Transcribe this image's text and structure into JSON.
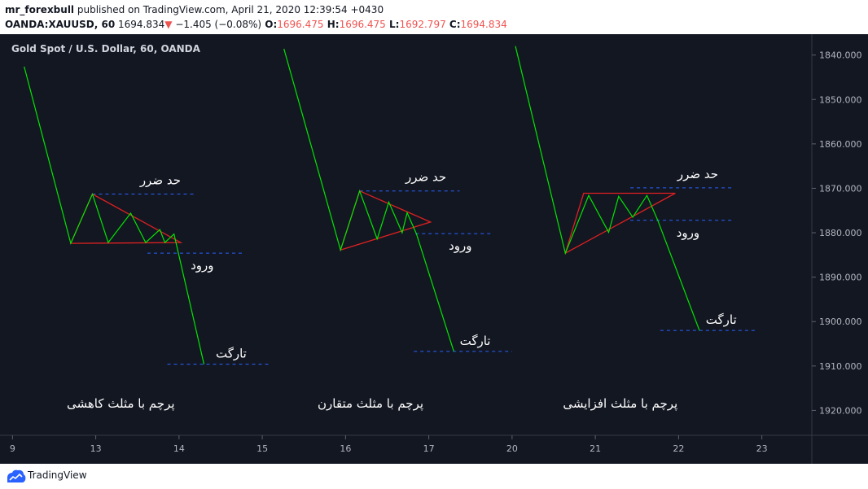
{
  "header": {
    "user": "mr_forexbull",
    "published_text": " published on TradingView.com, April 21, 2020 12:39:54 +0430",
    "symbol": "OANDA:XAUUSD, 60",
    "last": " 1694.834",
    "change_arrow": "▼",
    "change": " −1.405 (−0.08%)",
    "o_label": " O:",
    "o_value": "1696.475",
    "h_label": " H:",
    "h_value": "1696.475",
    "l_label": " L:",
    "l_value": "1692.797",
    "c_label": " C:",
    "c_value": "1694.834"
  },
  "chart_data": {
    "type": "line",
    "title": "Gold Spot / U.S. Dollar, 60, OANDA",
    "y_axis": {
      "ticks": [
        "1840.000",
        "1850.000",
        "1860.000",
        "1870.000",
        "1880.000",
        "1890.000",
        "1900.000",
        "1910.000",
        "1920.000"
      ],
      "tick_values": [
        1840,
        1850,
        1860,
        1870,
        1880,
        1890,
        1900,
        1910,
        1920
      ],
      "range": [
        1835.3,
        1925.6
      ],
      "inverted": true
    },
    "x_axis": {
      "ticks": [
        "9",
        "13",
        "14",
        "15",
        "16",
        "17",
        "20",
        "21",
        "22",
        "23"
      ],
      "tick_positions": [
        0,
        1,
        2,
        3,
        4,
        5,
        6,
        7,
        8,
        9
      ],
      "range": [
        -0.15,
        9.6
      ]
    },
    "line_color": "#00e600",
    "pattern_color": "#e02020",
    "level_color": "#2962ff",
    "patterns": [
      {
        "name": "پرچم با مثلث کاهشی",
        "stop_label": "حد ضرر",
        "entry_label": "ورود",
        "target_label": "تارگت",
        "path": [
          [
            0.14,
            1842.6
          ],
          [
            0.7,
            1882.4
          ],
          [
            0.96,
            1871.3
          ],
          [
            1.15,
            1882.2
          ],
          [
            1.42,
            1875.6
          ],
          [
            1.6,
            1882.2
          ],
          [
            1.77,
            1879.3
          ],
          [
            1.83,
            1882.2
          ],
          [
            1.94,
            1880.3
          ],
          [
            2.3,
            1909.6
          ]
        ],
        "triangle": [
          [
            0.7,
            1882.4
          ],
          [
            0.96,
            1871.3
          ],
          [
            2.02,
            1882.2
          ]
        ],
        "stop_level": {
          "y": 1871.3,
          "x": [
            0.96,
            2.2
          ]
        },
        "entry_level": {
          "y": 1884.6,
          "x": [
            1.62,
            2.78
          ]
        },
        "target_level": {
          "y": 1909.6,
          "x": [
            1.86,
            3.1
          ]
        }
      },
      {
        "name": "پرچم با مثلث متقارن",
        "stop_label": "حد ضرر",
        "entry_label": "ورود",
        "target_label": "تارگت",
        "path": [
          [
            3.26,
            1838.6
          ],
          [
            3.94,
            1883.9
          ],
          [
            4.17,
            1870.6
          ],
          [
            4.38,
            1881.4
          ],
          [
            4.52,
            1873.1
          ],
          [
            4.68,
            1880.0
          ],
          [
            4.74,
            1875.5
          ],
          [
            4.85,
            1880.2
          ],
          [
            5.3,
            1906.7
          ]
        ],
        "triangle": [
          [
            3.94,
            1883.9
          ],
          [
            4.17,
            1870.6
          ],
          [
            5.02,
            1877.6
          ]
        ],
        "stop_level": {
          "y": 1870.6,
          "x": [
            4.17,
            5.37
          ]
        },
        "entry_level": {
          "y": 1880.2,
          "x": [
            4.84,
            5.76
          ]
        },
        "target_level": {
          "y": 1906.7,
          "x": [
            4.82,
            6.0
          ]
        }
      },
      {
        "name": "پرچم با مثلث افزایشی",
        "stop_label": "حد ضرر",
        "entry_label": "ورود",
        "target_label": "تارگت",
        "path": [
          [
            6.04,
            1838.0
          ],
          [
            6.64,
            1884.6
          ],
          [
            6.92,
            1871.6
          ],
          [
            7.16,
            1879.9
          ],
          [
            7.28,
            1871.8
          ],
          [
            7.45,
            1876.5
          ],
          [
            7.62,
            1871.6
          ],
          [
            7.75,
            1877.2
          ],
          [
            8.25,
            1902.0
          ]
        ],
        "triangle": [
          [
            6.64,
            1884.6
          ],
          [
            6.86,
            1871.1
          ],
          [
            7.96,
            1871.1
          ]
        ],
        "stop_level": {
          "y": 1869.9,
          "x": [
            7.42,
            8.65
          ]
        },
        "entry_level": {
          "y": 1877.2,
          "x": [
            7.42,
            8.65
          ]
        },
        "target_level": {
          "y": 1902.0,
          "x": [
            7.78,
            8.95
          ]
        }
      }
    ]
  },
  "footer": {
    "brand": "TradingView"
  }
}
